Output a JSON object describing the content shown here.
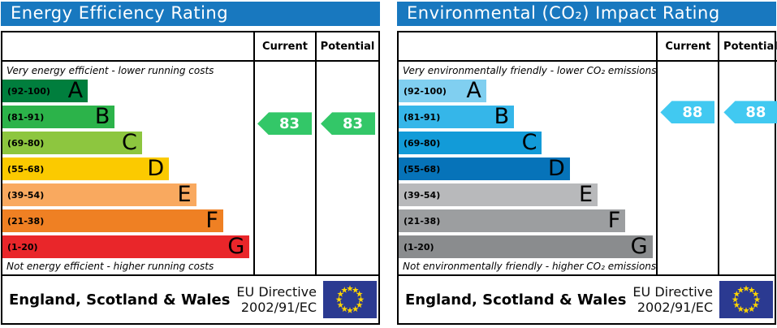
{
  "panels": [
    {
      "title": "Energy Efficiency Rating",
      "header": {
        "current": "Current",
        "potential": "Potential"
      },
      "top_label": "Very energy efficient - lower running costs",
      "bottom_label": "Not energy efficient - higher running costs",
      "bands": [
        {
          "letter": "A",
          "range_label": "(92-100)",
          "lo": 92,
          "hi": 100,
          "color": "#007e3d",
          "width_pct": 34
        },
        {
          "letter": "B",
          "range_label": "(81-91)",
          "lo": 81,
          "hi": 91,
          "color": "#2cb34a",
          "width_pct": 44.8
        },
        {
          "letter": "C",
          "range_label": "(69-80)",
          "lo": 69,
          "hi": 80,
          "color": "#8dc63f",
          "width_pct": 55.6
        },
        {
          "letter": "D",
          "range_label": "(55-68)",
          "lo": 55,
          "hi": 68,
          "color": "#fbca00",
          "width_pct": 66.4
        },
        {
          "letter": "E",
          "range_label": "(39-54)",
          "lo": 39,
          "hi": 54,
          "color": "#f9a95f",
          "width_pct": 77.2
        },
        {
          "letter": "F",
          "range_label": "(21-38)",
          "lo": 21,
          "hi": 38,
          "color": "#ef8023",
          "width_pct": 88
        },
        {
          "letter": "G",
          "range_label": "(1-20)",
          "lo": 1,
          "hi": 20,
          "color": "#e9262a",
          "width_pct": 98.5
        }
      ],
      "current": {
        "value": 83,
        "color": "#33c768"
      },
      "potential": {
        "value": 83,
        "color": "#33c768"
      },
      "footer": {
        "region": "England, Scotland & Wales",
        "directive_line1": "EU Directive",
        "directive_line2": "2002/91/EC"
      }
    },
    {
      "title": "Environmental (CO₂) Impact Rating",
      "header": {
        "current": "Current",
        "potential": "Potential"
      },
      "top_label": "Very environmentally friendly - lower CO₂ emissions",
      "bottom_label": "Not environmentally friendly - higher CO₂ emissions",
      "bands": [
        {
          "letter": "A",
          "range_label": "(92-100)",
          "lo": 92,
          "hi": 100,
          "color": "#80cff0",
          "width_pct": 34
        },
        {
          "letter": "B",
          "range_label": "(81-91)",
          "lo": 81,
          "hi": 91,
          "color": "#35b6e9",
          "width_pct": 44.8
        },
        {
          "letter": "C",
          "range_label": "(69-80)",
          "lo": 69,
          "hi": 80,
          "color": "#129bd8",
          "width_pct": 55.6
        },
        {
          "letter": "D",
          "range_label": "(55-68)",
          "lo": 55,
          "hi": 68,
          "color": "#0673b9",
          "width_pct": 66.4
        },
        {
          "letter": "E",
          "range_label": "(39-54)",
          "lo": 39,
          "hi": 54,
          "color": "#b8b9bb",
          "width_pct": 77.2
        },
        {
          "letter": "F",
          "range_label": "(21-38)",
          "lo": 21,
          "hi": 38,
          "color": "#9c9ea0",
          "width_pct": 88
        },
        {
          "letter": "G",
          "range_label": "(1-20)",
          "lo": 1,
          "hi": 20,
          "color": "#8a8c8e",
          "width_pct": 98.5
        }
      ],
      "current": {
        "value": 88,
        "color": "#41c9f1"
      },
      "potential": {
        "value": 88,
        "color": "#41c9f1"
      },
      "footer": {
        "region": "England, Scotland & Wales",
        "directive_line1": "EU Directive",
        "directive_line2": "2002/91/EC"
      }
    }
  ],
  "eu_flag": {
    "background": "#2b3a91",
    "star_color": "#ffd500"
  },
  "chart_data": [
    {
      "type": "bar",
      "title": "Energy Efficiency Rating",
      "categories": [
        "A (92-100)",
        "B (81-91)",
        "C (69-80)",
        "D (55-68)",
        "E (39-54)",
        "F (21-38)",
        "G (1-20)"
      ],
      "series": [
        {
          "name": "Current",
          "values": [
            83
          ]
        },
        {
          "name": "Potential",
          "values": [
            83
          ]
        }
      ],
      "current_band": "B",
      "potential_band": "B",
      "xlabel": "",
      "ylabel": "",
      "ylim": [
        1,
        100
      ],
      "annotations": [
        "Very energy efficient - lower running costs",
        "Not energy efficient - higher running costs",
        "England, Scotland & Wales",
        "EU Directive 2002/91/EC"
      ]
    },
    {
      "type": "bar",
      "title": "Environmental (CO₂) Impact Rating",
      "categories": [
        "A (92-100)",
        "B (81-91)",
        "C (69-80)",
        "D (55-68)",
        "E (39-54)",
        "F (21-38)",
        "G (1-20)"
      ],
      "series": [
        {
          "name": "Current",
          "values": [
            88
          ]
        },
        {
          "name": "Potential",
          "values": [
            88
          ]
        }
      ],
      "current_band": "B",
      "potential_band": "B",
      "xlabel": "",
      "ylabel": "",
      "ylim": [
        1,
        100
      ],
      "annotations": [
        "Very environmentally friendly - lower CO₂ emissions",
        "Not environmentally friendly - higher CO₂ emissions",
        "England, Scotland & Wales",
        "EU Directive 2002/91/EC"
      ]
    }
  ]
}
